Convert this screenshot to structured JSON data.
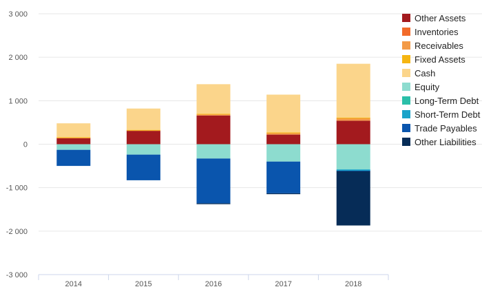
{
  "chart_data": {
    "type": "bar",
    "stacked": true,
    "categories": [
      "2014",
      "2015",
      "2016",
      "2017",
      "2018"
    ],
    "y_ticks": [
      "3 000",
      "2 000",
      "1 000",
      "0",
      "-1 000",
      "-2 000",
      "-3 000"
    ],
    "ylim": [
      -3000,
      3000
    ],
    "grid": true,
    "legend_position": "right",
    "series": [
      {
        "name": "Other Assets",
        "color": "#a31a1e",
        "values": [
          140,
          310,
          660,
          220,
          540
        ]
      },
      {
        "name": "Inventories",
        "color": "#f26b2a",
        "values": [
          0,
          0,
          0,
          0,
          0
        ]
      },
      {
        "name": "Receivables",
        "color": "#f39a47",
        "values": [
          10,
          10,
          30,
          40,
          60
        ]
      },
      {
        "name": "Fixed Assets",
        "color": "#f5b511",
        "values": [
          10,
          10,
          10,
          10,
          10
        ]
      },
      {
        "name": "Cash",
        "color": "#fbd58b",
        "values": [
          320,
          490,
          680,
          870,
          1240
        ]
      },
      {
        "name": "Equity",
        "color": "#8ddccf",
        "values": [
          -130,
          -240,
          -330,
          -400,
          -580
        ]
      },
      {
        "name": "Long-Term Debt",
        "color": "#2bbfa9",
        "values": [
          0,
          0,
          0,
          0,
          0
        ]
      },
      {
        "name": "Short-Term Debt",
        "color": "#1aa3c9",
        "values": [
          0,
          0,
          0,
          0,
          -30
        ]
      },
      {
        "name": "Trade Payables",
        "color": "#0a55ad",
        "values": [
          -370,
          -590,
          -1030,
          -730,
          -10
        ]
      },
      {
        "name": "Other Liabilities",
        "color": "#062c57",
        "values": [
          0,
          0,
          -20,
          -20,
          -1250
        ]
      }
    ]
  }
}
